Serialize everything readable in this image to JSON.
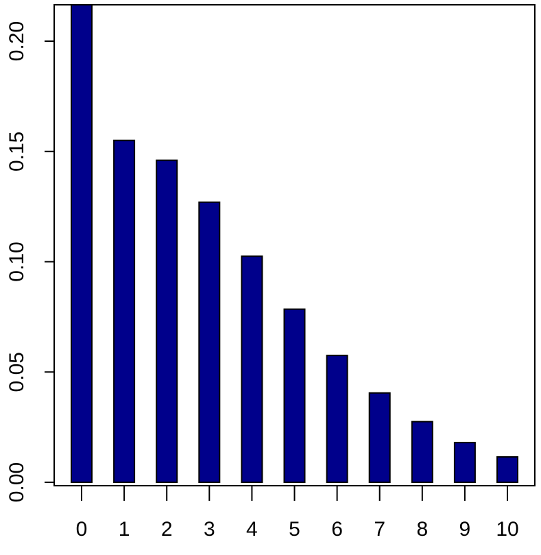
{
  "chart_data": {
    "type": "bar",
    "title": "",
    "xlabel": "",
    "ylabel": "",
    "categories": [
      "0",
      "1",
      "2",
      "3",
      "4",
      "5",
      "6",
      "7",
      "8",
      "9",
      "10"
    ],
    "values": [
      0.218,
      0.155,
      0.146,
      0.127,
      0.1025,
      0.0785,
      0.0575,
      0.0405,
      0.0275,
      0.018,
      0.0115
    ],
    "ylim": [
      0,
      0.217
    ],
    "yticks": [
      "0.00",
      "0.05",
      "0.10",
      "0.15",
      "0.20"
    ],
    "ytick_values": [
      0,
      0.05,
      0.1,
      0.15,
      0.2
    ],
    "grid": false,
    "bar_color": "#00008b",
    "bar_edge_color": "#000000"
  }
}
